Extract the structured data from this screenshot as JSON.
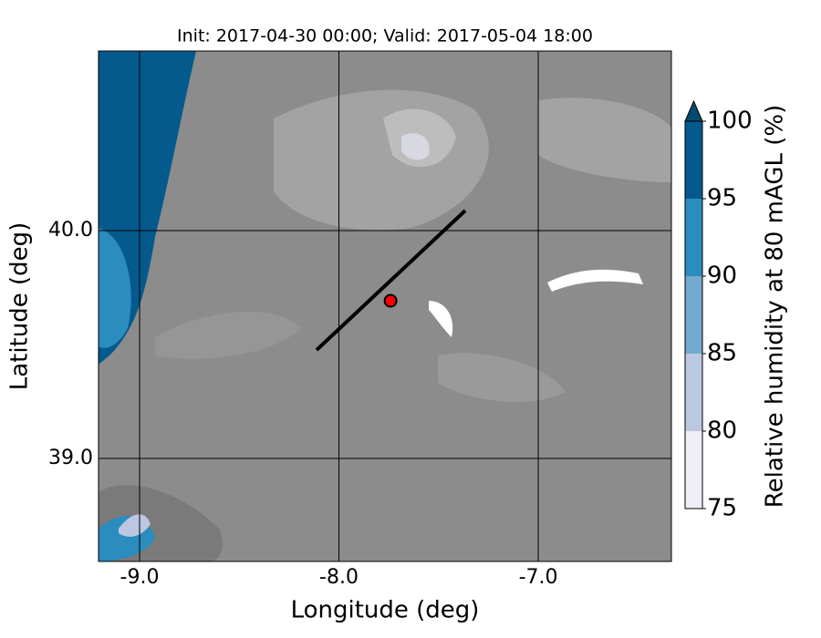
{
  "chart_data": {
    "type": "contour-map",
    "title": "Init: 2017-04-30 00:00; Valid: 2017-05-04 18:00",
    "x_label": "Longitude (deg)",
    "y_label": "Latitude (deg)",
    "xlim": [
      -9.206,
      -6.332
    ],
    "ylim": [
      38.548,
      40.788
    ],
    "xticks": [
      {
        "value": -9,
        "label": "-9.0"
      },
      {
        "value": -8,
        "label": "-8.0"
      },
      {
        "value": -7,
        "label": "-7.0"
      }
    ],
    "yticks": [
      {
        "value": 39,
        "label": "39.0"
      },
      {
        "value": 40,
        "label": "40.0"
      }
    ],
    "cross_section": {
      "x": [
        -8.112,
        -7.366
      ],
      "y": [
        39.476,
        40.088
      ],
      "color": "#000000"
    },
    "site": {
      "x": -7.741,
      "y": 39.692,
      "color": "#ff0000"
    },
    "colorbar": {
      "label": "Relative humidity at 80 mAGL (%)",
      "ticks": [
        75,
        80,
        85,
        90,
        95,
        100
      ],
      "colors": [
        "#efedf5",
        "#bcc7e1",
        "#74a9cf",
        "#2b8cbe",
        "#045a8d"
      ],
      "extend_color": "#034a6e"
    }
  }
}
